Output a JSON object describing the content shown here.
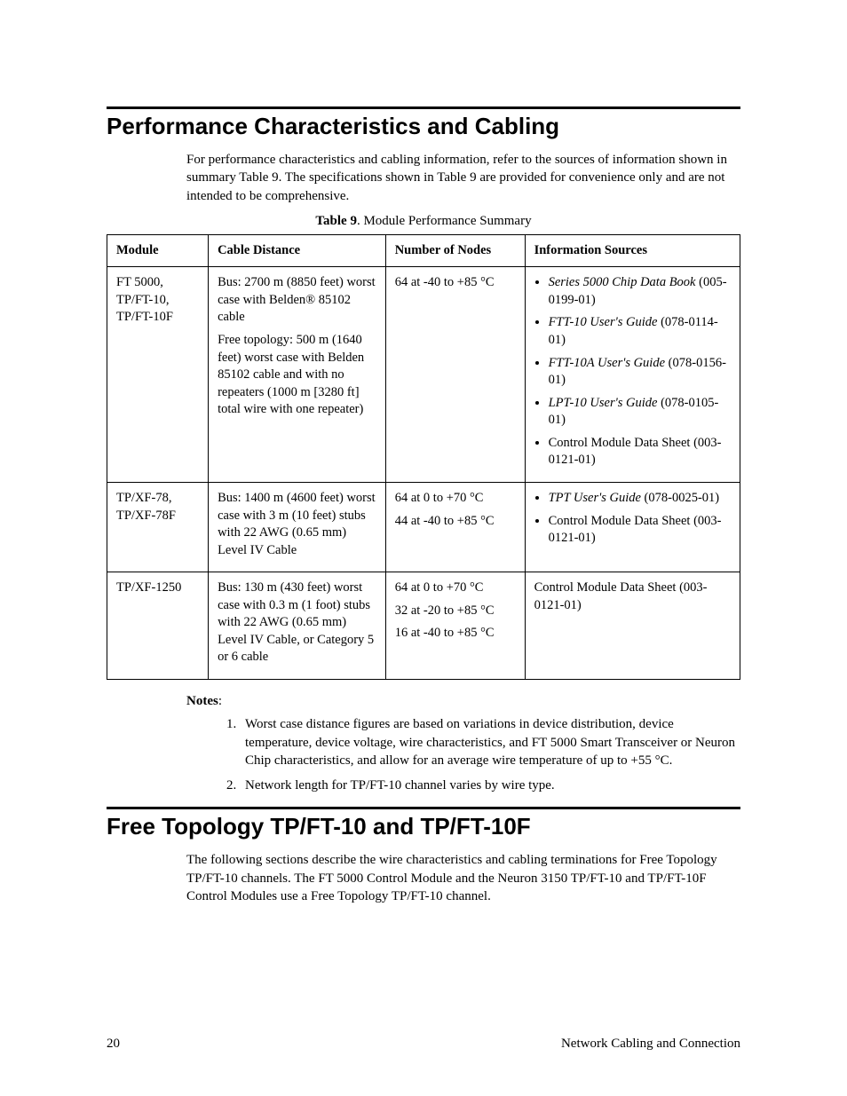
{
  "section1": {
    "title": "Performance Characteristics and Cabling",
    "intro": "For performance characteristics and cabling information, refer to the sources of information shown in summary Table 9.  The specifications shown in Table 9 are provided for convenience only and are not intended to be comprehensive.",
    "table_caption_prefix": "Table 9",
    "table_caption_rest": ". Module Performance Summary",
    "headers": {
      "module": "Module",
      "cable": "Cable Distance",
      "nodes": "Number of Nodes",
      "sources": "Information Sources"
    },
    "rows": [
      {
        "module": "FT 5000, TP/FT-10, TP/FT-10F",
        "cable_p1": "Bus: 2700 m (8850 feet) worst case with Belden® 85102 cable",
        "cable_p2": "Free topology: 500 m (1640 feet) worst case with Belden 85102 cable and with no repeaters (1000 m [3280 ft] total wire with one repeater)",
        "nodes": "64 at -40 to +85 °C",
        "sources": [
          {
            "italic": "Series 5000 Chip Data Book",
            "rest": " (005-0199-01)"
          },
          {
            "italic": "FTT-10 User's Guide",
            "rest": " (078-0114-01)"
          },
          {
            "italic": "FTT-10A User's Guide",
            "rest": " (078-0156-01)"
          },
          {
            "italic": "LPT-10 User's Guide",
            "rest": " (078-0105-01)"
          },
          {
            "italic": "",
            "rest": "Control Module Data Sheet (003-0121-01)"
          }
        ]
      },
      {
        "module": "TP/XF-78, TP/XF-78F",
        "cable_p1": "Bus: 1400 m (4600 feet) worst case with 3 m (10 feet) stubs with 22 AWG (0.65 mm) Level IV Cable",
        "cable_p2": "",
        "nodes_p1": "64 at 0 to +70 °C",
        "nodes_p2": "44 at -40 to +85 °C",
        "sources": [
          {
            "italic": "TPT User's Guide",
            "rest": " (078-0025-01)"
          },
          {
            "italic": "",
            "rest": "Control Module Data Sheet (003-0121-01)"
          }
        ]
      },
      {
        "module": "TP/XF-1250",
        "cable_p1": "Bus: 130 m (430 feet) worst case with 0.3 m (1 foot) stubs with 22 AWG (0.65 mm) Level IV Cable, or Category 5 or 6 cable",
        "cable_p2": "",
        "nodes_p1": "64 at 0 to +70 °C",
        "nodes_p2": "32 at -20 to +85 °C",
        "nodes_p3": "16 at -40 to +85 °C",
        "sources_plain": "Control Module Data Sheet (003-0121-01)"
      }
    ],
    "notes_label": "Notes",
    "notes": [
      "Worst case distance figures are based on variations in device distribution, device temperature, device voltage, wire characteristics, and FT 5000 Smart Transceiver or Neuron Chip characteristics, and allow for an average wire temperature of up to +55 °C.",
      "Network length for TP/FT-10 channel varies by wire type."
    ]
  },
  "section2": {
    "title": "Free Topology TP/FT-10 and TP/FT-10F",
    "intro": "The following sections describe the wire characteristics and cabling terminations for Free Topology TP/FT-10 channels.  The FT 5000 Control Module and the Neuron 3150 TP/FT-10 and TP/FT-10F Control Modules use a Free Topology TP/FT-10 channel."
  },
  "footer": {
    "page": "20",
    "label": "Network Cabling and Connection"
  }
}
